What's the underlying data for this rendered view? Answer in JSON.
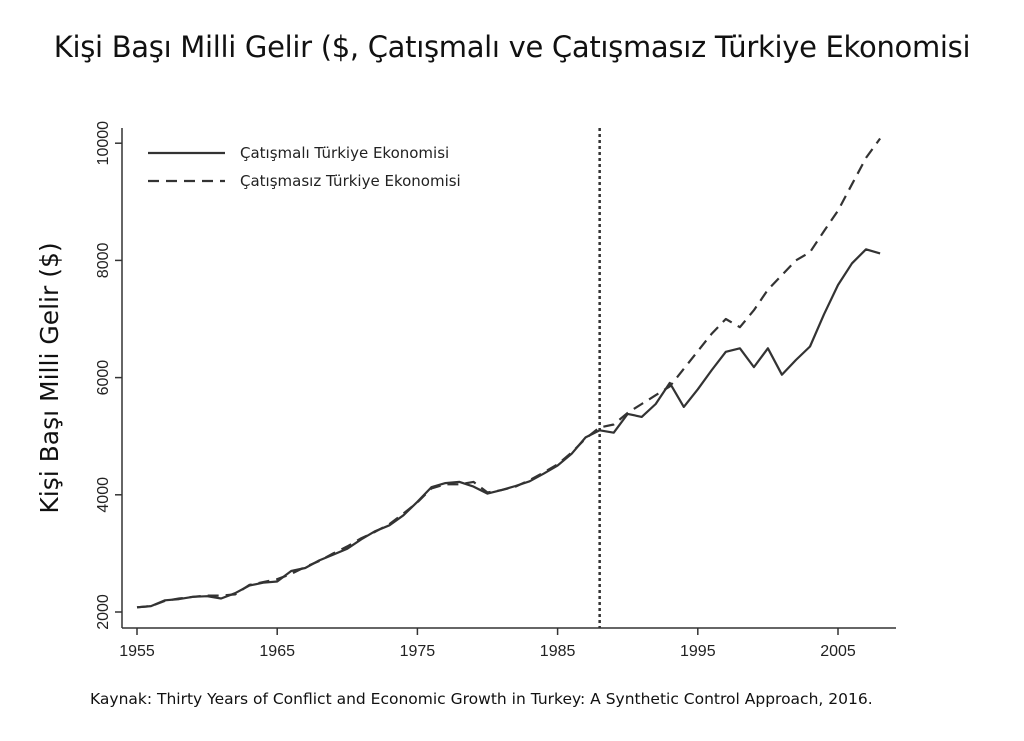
{
  "chart_data": {
    "type": "line",
    "title": "Kişi Başı Milli Gelir ($, Çatışmalı ve Çatışmasız Türkiye Ekonomisi",
    "xlabel": "",
    "ylabel": "Kişi Başı Milli Gelir ($)",
    "xlim": [
      1954,
      2009.5
    ],
    "ylim": [
      1700,
      10300
    ],
    "xticks": [
      1955,
      1965,
      1975,
      1985,
      1995,
      2005
    ],
    "yticks": [
      2000,
      4000,
      6000,
      8000,
      10000
    ],
    "vline": 1988,
    "legend_position": "top-left",
    "x": [
      1955,
      1956,
      1957,
      1958,
      1959,
      1960,
      1961,
      1962,
      1963,
      1964,
      1965,
      1966,
      1967,
      1968,
      1969,
      1970,
      1971,
      1972,
      1973,
      1974,
      1975,
      1976,
      1977,
      1978,
      1979,
      1980,
      1981,
      1982,
      1983,
      1984,
      1985,
      1986,
      1987,
      1988,
      1989,
      1990,
      1991,
      1992,
      1993,
      1994,
      1995,
      1996,
      1997,
      1998,
      1999,
      2000,
      2001,
      2002,
      2003,
      2004,
      2005,
      2006,
      2007,
      2008
    ],
    "series": [
      {
        "name": "Çatışmalı Türkiye Ekonomisi",
        "style": "solid",
        "values": [
          2080,
          2100,
          2200,
          2220,
          2260,
          2270,
          2230,
          2320,
          2450,
          2500,
          2520,
          2700,
          2750,
          2880,
          2980,
          3080,
          3240,
          3380,
          3480,
          3650,
          3880,
          4130,
          4200,
          4220,
          4140,
          4020,
          4080,
          4150,
          4230,
          4360,
          4500,
          4700,
          4980,
          5100,
          5060,
          5380,
          5330,
          5550,
          5910,
          5500,
          5800,
          6130,
          6440,
          6500,
          6180,
          6500,
          6050,
          6300,
          6530,
          7080,
          7580,
          7950,
          8190,
          8120
        ]
      },
      {
        "name": "Çatışmasız Türkiye Ekonomisi",
        "style": "dashed",
        "values": [
          2080,
          2100,
          2190,
          2230,
          2260,
          2280,
          2280,
          2300,
          2460,
          2510,
          2560,
          2650,
          2770,
          2870,
          3000,
          3120,
          3260,
          3370,
          3500,
          3680,
          3870,
          4110,
          4180,
          4180,
          4220,
          4040,
          4080,
          4140,
          4250,
          4380,
          4520,
          4720,
          4960,
          5150,
          5200,
          5400,
          5550,
          5700,
          5850,
          6150,
          6450,
          6750,
          7000,
          6860,
          7150,
          7500,
          7750,
          8000,
          8140,
          8500,
          8850,
          9300,
          9750,
          10080
        ]
      }
    ]
  },
  "source": "Kaynak: Thirty Years of Conflict and Economic Growth in Turkey: A Synthetic Control Approach, 2016."
}
